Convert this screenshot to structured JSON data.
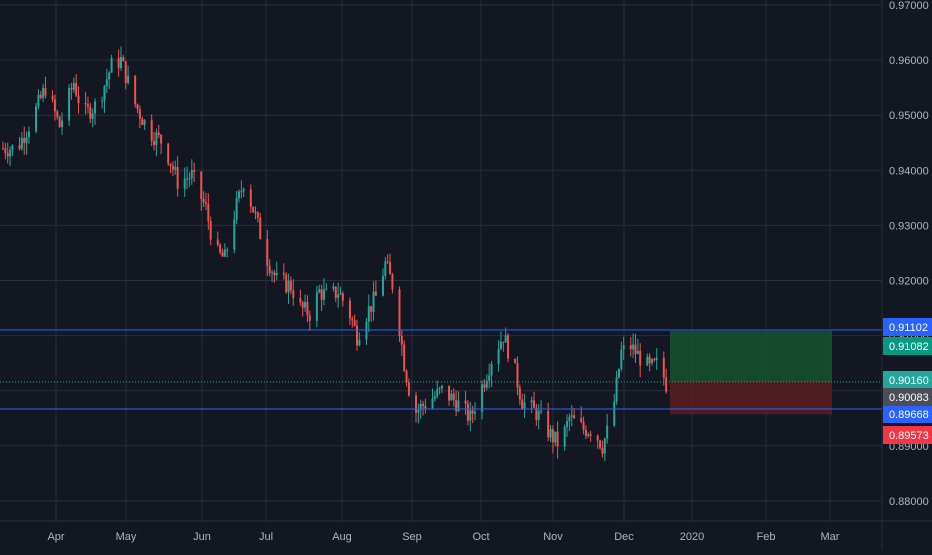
{
  "theme": {
    "background": "#131722",
    "grid": "#2a2e39",
    "axis_text": "#b2b5be",
    "up": "#26a69a",
    "down": "#ef5350",
    "level_line": "#2962ff",
    "profit_zone": "#1b5e20",
    "loss_zone": "#7f1d1d"
  },
  "chart_data": {
    "type": "candlestick",
    "title": "",
    "xlabel": "",
    "ylabel": "",
    "ylim": [
      0.875,
      0.97
    ],
    "y_ticks": [
      "0.97000",
      "0.96000",
      "0.95000",
      "0.94000",
      "0.93000",
      "0.92000",
      "0.91000",
      "0.90000",
      "0.89000",
      "0.88000"
    ],
    "x_ticks": [
      "Apr",
      "May",
      "Jun",
      "Jul",
      "Aug",
      "Sep",
      "Oct",
      "Nov",
      "Dec",
      "2020",
      "Feb",
      "Mar"
    ],
    "grid": true,
    "close_path": [
      [
        0,
        0.944
      ],
      [
        6,
        0.944
      ],
      [
        12,
        0.949
      ],
      [
        18,
        0.955
      ],
      [
        24,
        0.948
      ],
      [
        30,
        0.956
      ],
      [
        34,
        0.95
      ],
      [
        40,
        0.952
      ],
      [
        46,
        0.959
      ],
      [
        50,
        0.96
      ],
      [
        56,
        0.952
      ],
      [
        62,
        0.947
      ],
      [
        68,
        0.945
      ],
      [
        74,
        0.938
      ],
      [
        80,
        0.939
      ],
      [
        86,
        0.933
      ],
      [
        90,
        0.925
      ],
      [
        94,
        0.924
      ],
      [
        98,
        0.932
      ],
      [
        102,
        0.938
      ],
      [
        106,
        0.933
      ],
      [
        112,
        0.924
      ],
      [
        116,
        0.92
      ],
      [
        122,
        0.919
      ],
      [
        126,
        0.915
      ],
      [
        130,
        0.914
      ],
      [
        134,
        0.918
      ],
      [
        138,
        0.917
      ],
      [
        142,
        0.918
      ],
      [
        146,
        0.915
      ],
      [
        150,
        0.91
      ],
      [
        154,
        0.914
      ],
      [
        158,
        0.917
      ],
      [
        162,
        0.923
      ],
      [
        166,
        0.918
      ],
      [
        170,
        0.905
      ],
      [
        174,
        0.896
      ],
      [
        180,
        0.898
      ],
      [
        186,
        0.9
      ],
      [
        192,
        0.898
      ],
      [
        198,
        0.895
      ],
      [
        204,
        0.902
      ],
      [
        208,
        0.907
      ],
      [
        212,
        0.91
      ],
      [
        216,
        0.905
      ],
      [
        220,
        0.898
      ],
      [
        226,
        0.896
      ],
      [
        232,
        0.892
      ],
      [
        236,
        0.89
      ],
      [
        240,
        0.895
      ],
      [
        246,
        0.893
      ],
      [
        250,
        0.893
      ],
      [
        254,
        0.89
      ],
      [
        258,
        0.895
      ],
      [
        262,
        0.907
      ],
      [
        266,
        0.908
      ],
      [
        270,
        0.906
      ],
      [
        274,
        0.904
      ],
      [
        278,
        0.905
      ],
      [
        282,
        0.9
      ],
      [
        286,
        0.902
      ],
      [
        290,
        0.9
      ],
      [
        294,
        0.908
      ],
      [
        296,
        0.903
      ],
      [
        300,
        0.907
      ],
      [
        302,
        0.904
      ],
      [
        305,
        0.901
      ]
    ],
    "candles_per_day": 1,
    "levels": [
      {
        "label": "0.91102",
        "value": 0.91102,
        "color": "#2962ff",
        "text_color": "#ffffff",
        "style": "solid"
      },
      {
        "label": "0.89668",
        "value": 0.89668,
        "color": "#2962ff",
        "text_color": "#ffffff",
        "style": "solid"
      },
      {
        "label": "0.90160",
        "value": 0.9016,
        "color": "#26a69a",
        "text_color": "#ffffff",
        "style": "dotted"
      }
    ],
    "price_tags": [
      {
        "label": "0.91082",
        "value": 0.91082,
        "color": "#089981",
        "text_color": "#ffffff"
      },
      {
        "label": "0.90083",
        "value": 0.90083,
        "color": "#4a4e58",
        "text_color": "#ffffff"
      },
      {
        "label": "0.89573",
        "value": 0.89573,
        "color": "#f23645",
        "text_color": "#ffffff"
      }
    ],
    "position_box": {
      "entry": 0.9016,
      "target": 0.91082,
      "stop": 0.89573,
      "start_day": 311,
      "end_day": 420
    }
  }
}
